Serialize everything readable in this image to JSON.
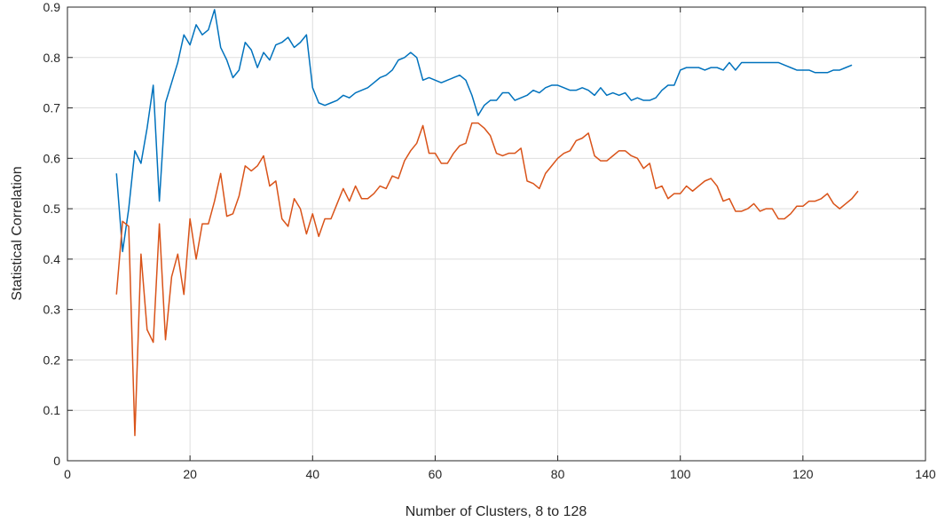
{
  "chart_data": {
    "type": "line",
    "title": "",
    "xlabel": "Number of Clusters, 8 to 128",
    "ylabel": "Statistical Correlation",
    "xlim": [
      0,
      140
    ],
    "ylim": [
      0,
      0.9
    ],
    "xticks": [
      0,
      20,
      40,
      60,
      80,
      100,
      120,
      140
    ],
    "yticks": [
      0,
      0.1,
      0.2,
      0.3,
      0.4,
      0.5,
      0.6,
      0.7,
      0.8,
      0.9
    ],
    "grid": true,
    "legend": "none",
    "x_start": 8,
    "x_end": 128,
    "series": [
      {
        "color": "#0072BD",
        "values": [
          0.57,
          0.415,
          0.5,
          0.615,
          0.59,
          0.66,
          0.745,
          0.515,
          0.71,
          0.75,
          0.79,
          0.845,
          0.825,
          0.865,
          0.845,
          0.855,
          0.895,
          0.82,
          0.795,
          0.76,
          0.775,
          0.83,
          0.815,
          0.78,
          0.81,
          0.795,
          0.825,
          0.83,
          0.84,
          0.82,
          0.83,
          0.845,
          0.74,
          0.71,
          0.705,
          0.71,
          0.715,
          0.725,
          0.72,
          0.73,
          0.735,
          0.74,
          0.75,
          0.76,
          0.765,
          0.775,
          0.795,
          0.8,
          0.81,
          0.8,
          0.755,
          0.76,
          0.755,
          0.75,
          0.755,
          0.76,
          0.765,
          0.755,
          0.725,
          0.685,
          0.705,
          0.715,
          0.715,
          0.73,
          0.73,
          0.715,
          0.72,
          0.725,
          0.735,
          0.73,
          0.74,
          0.745,
          0.745,
          0.74,
          0.735,
          0.735,
          0.74,
          0.735,
          0.725,
          0.74,
          0.725,
          0.73,
          0.725,
          0.73,
          0.715,
          0.72,
          0.715,
          0.715,
          0.72,
          0.735,
          0.745,
          0.745,
          0.775,
          0.78,
          0.78,
          0.78,
          0.775,
          0.78,
          0.78,
          0.775,
          0.79,
          0.775,
          0.79,
          0.79,
          0.79,
          0.79,
          0.79,
          0.79,
          0.79,
          0.785,
          0.78,
          0.775,
          0.775,
          0.775,
          0.77,
          0.77,
          0.77,
          0.775,
          0.775,
          0.78,
          0.785
        ]
      },
      {
        "color": "#D95319",
        "values": [
          0.33,
          0.475,
          0.465,
          0.05,
          0.41,
          0.26,
          0.235,
          0.47,
          0.24,
          0.365,
          0.41,
          0.33,
          0.48,
          0.4,
          0.47,
          0.47,
          0.515,
          0.57,
          0.485,
          0.49,
          0.525,
          0.585,
          0.575,
          0.585,
          0.605,
          0.545,
          0.555,
          0.48,
          0.465,
          0.52,
          0.5,
          0.45,
          0.49,
          0.445,
          0.48,
          0.48,
          0.51,
          0.54,
          0.515,
          0.545,
          0.52,
          0.52,
          0.53,
          0.545,
          0.54,
          0.565,
          0.56,
          0.595,
          0.615,
          0.63,
          0.665,
          0.61,
          0.61,
          0.59,
          0.59,
          0.61,
          0.625,
          0.63,
          0.67,
          0.67,
          0.66,
          0.645,
          0.61,
          0.605,
          0.61,
          0.61,
          0.62,
          0.555,
          0.55,
          0.54,
          0.57,
          0.585,
          0.6,
          0.61,
          0.615,
          0.635,
          0.64,
          0.65,
          0.605,
          0.595,
          0.595,
          0.605,
          0.615,
          0.615,
          0.605,
          0.6,
          0.58,
          0.59,
          0.54,
          0.545,
          0.52,
          0.53,
          0.53,
          0.545,
          0.535,
          0.545,
          0.555,
          0.56,
          0.545,
          0.515,
          0.52,
          0.495,
          0.495,
          0.5,
          0.51,
          0.495,
          0.5,
          0.5,
          0.48,
          0.48,
          0.49,
          0.505,
          0.505,
          0.515,
          0.515,
          0.52,
          0.53,
          0.51,
          0.5,
          0.51,
          0.52,
          0.535
        ]
      }
    ]
  }
}
